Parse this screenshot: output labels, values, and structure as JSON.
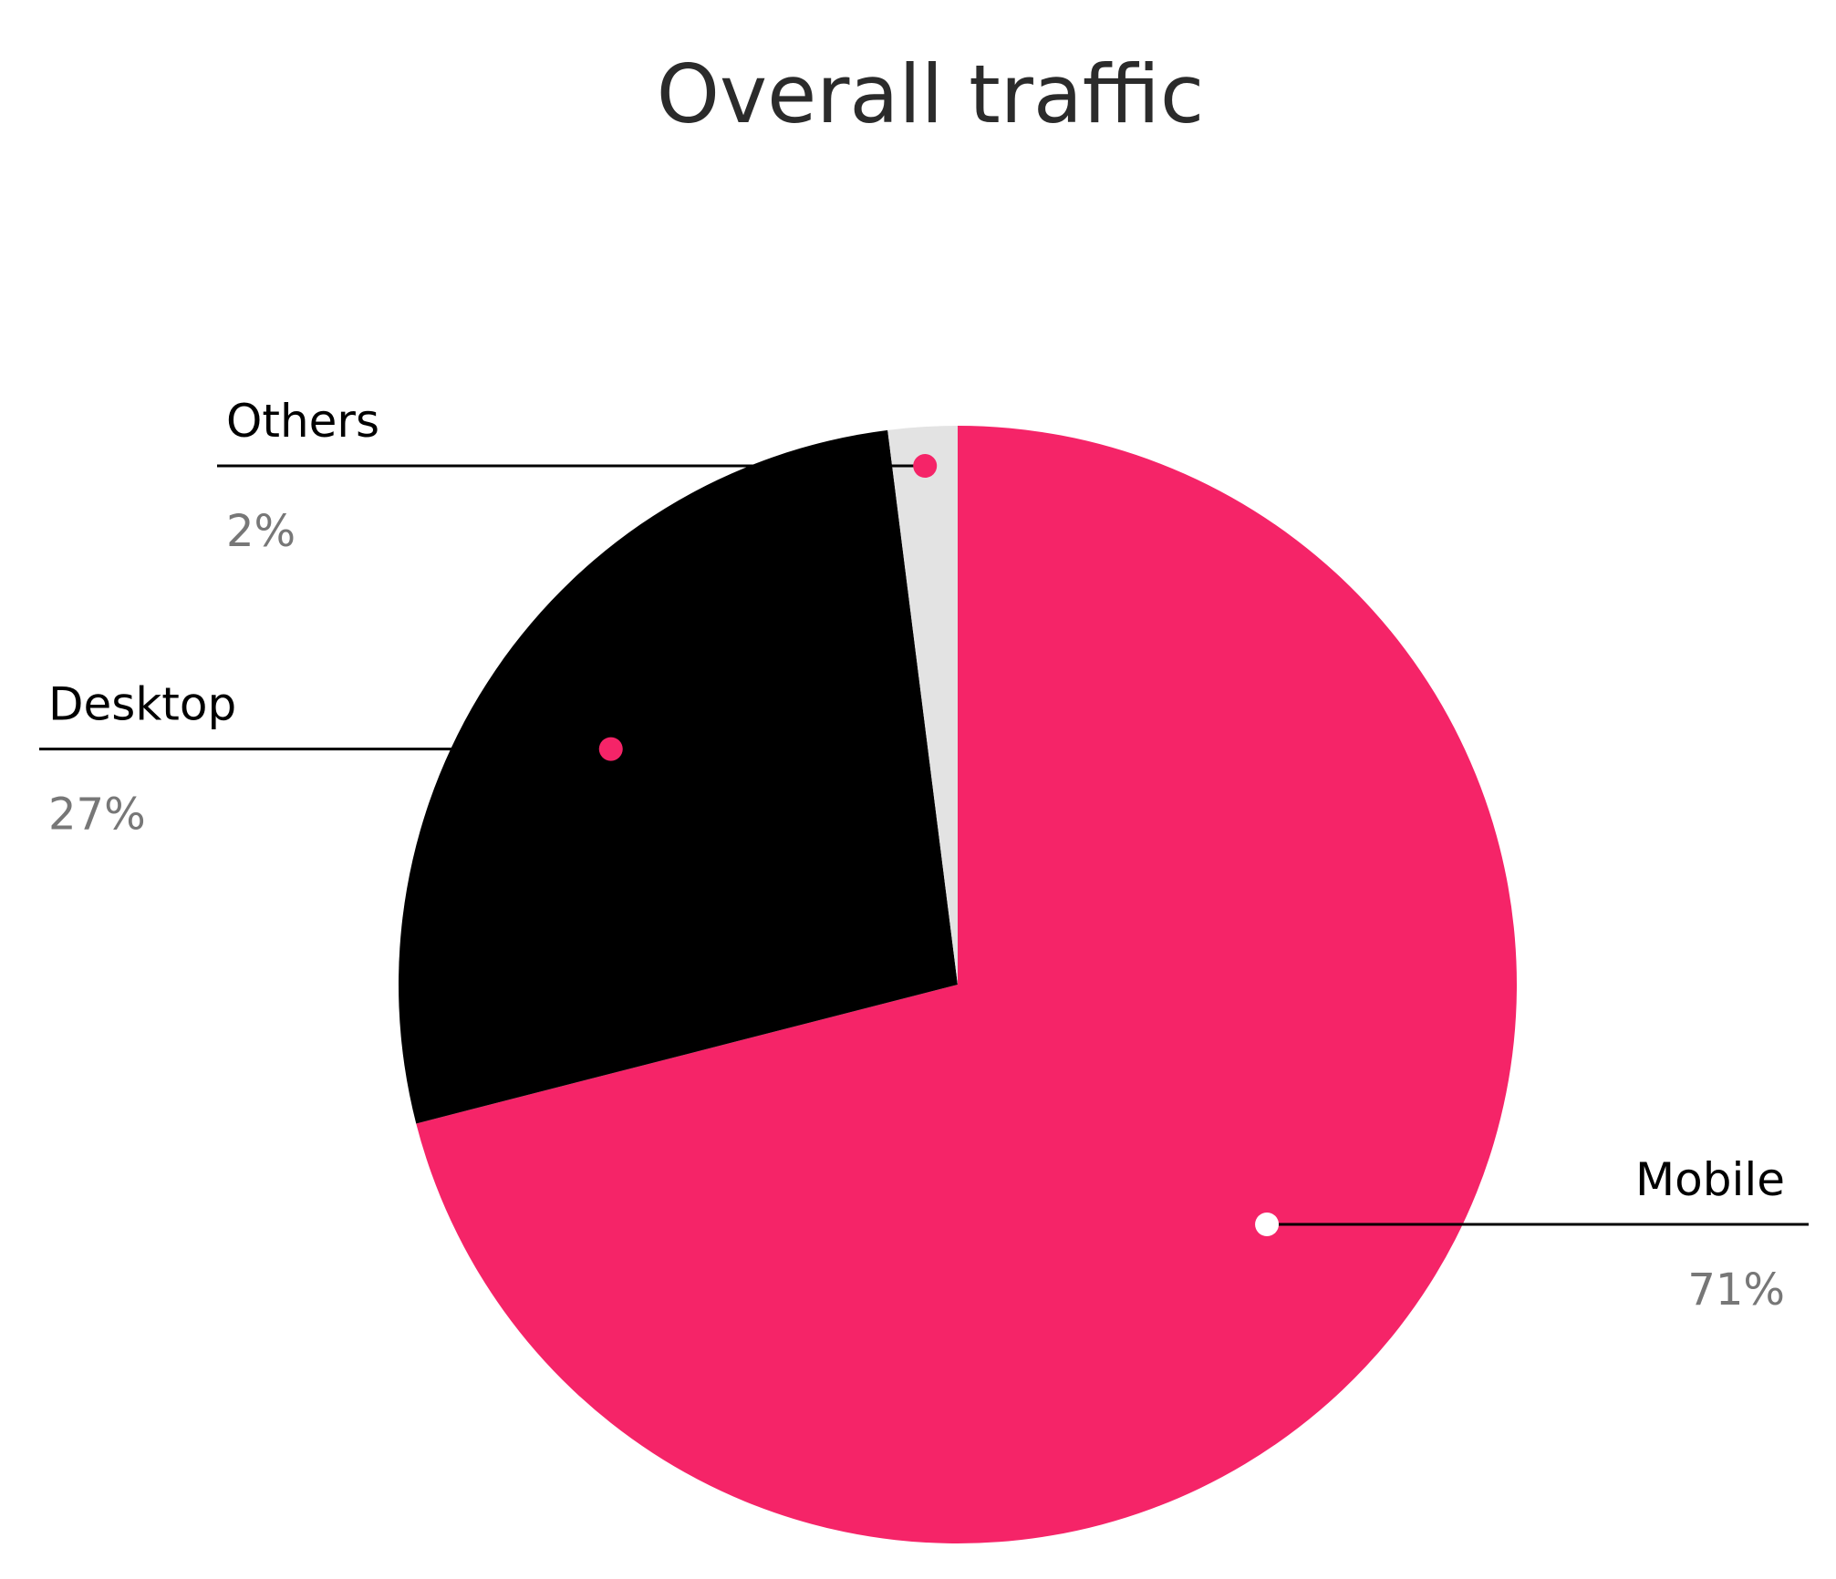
{
  "chart_data": {
    "type": "pie",
    "title": "Overall traffic",
    "categories": [
      "Mobile",
      "Desktop",
      "Others"
    ],
    "values": [
      71,
      27,
      2
    ],
    "value_labels": [
      "71%",
      "27%",
      "2%"
    ],
    "colors": [
      "#f52468",
      "#000000",
      "#e3e3e3"
    ],
    "dot_colors": [
      "#ffffff",
      "#f52468",
      "#f52468"
    ]
  }
}
